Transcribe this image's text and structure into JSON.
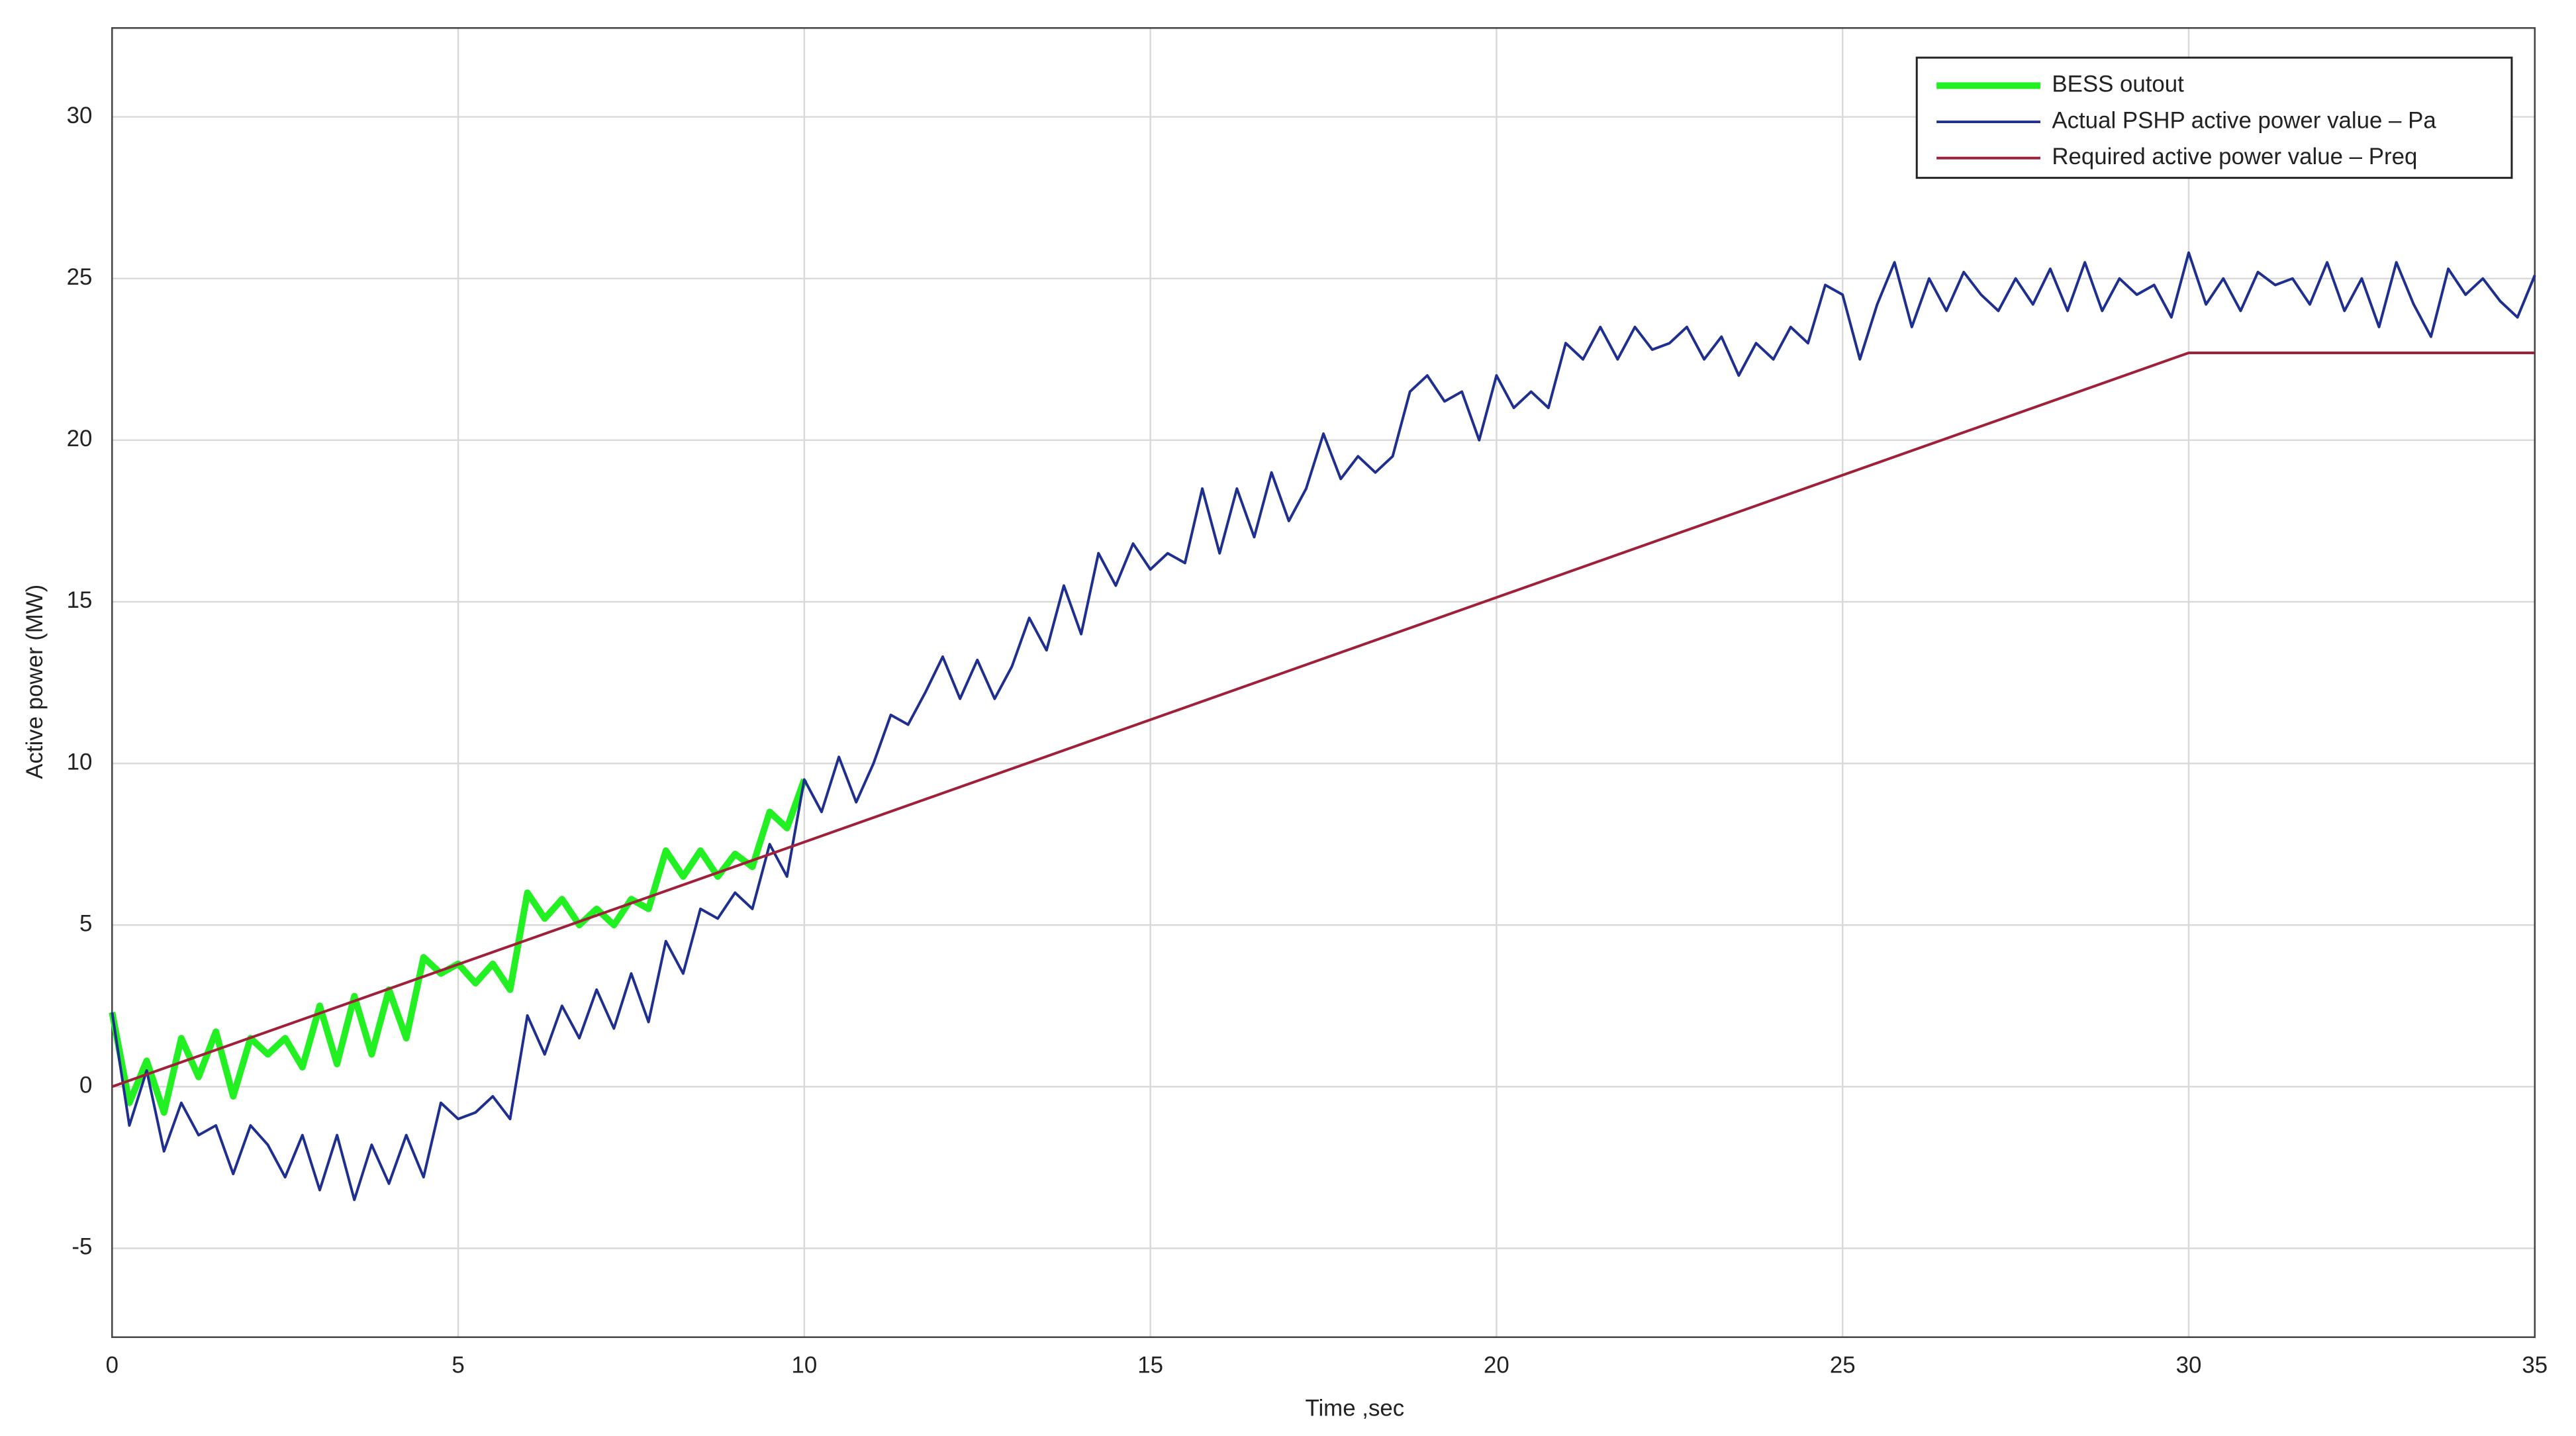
{
  "chart_data": {
    "type": "line",
    "xlabel": "Time ,sec",
    "ylabel": "Active power (MW)",
    "xlim": [
      0,
      35
    ],
    "ylim": [
      -7.75,
      32.75
    ],
    "xticks": [
      0,
      5,
      10,
      15,
      20,
      25,
      30,
      35
    ],
    "yticks": [
      -5,
      0,
      5,
      10,
      15,
      20,
      25,
      30
    ],
    "grid": true,
    "legend": "upper right",
    "series": [
      {
        "name": "BESS outout",
        "color": "#22f022",
        "width": 4,
        "x": [
          0,
          0.25,
          0.5,
          0.75,
          1,
          1.25,
          1.5,
          1.75,
          2,
          2.25,
          2.5,
          2.75,
          3,
          3.25,
          3.5,
          3.75,
          4,
          4.25,
          4.5,
          4.75,
          5,
          5.25,
          5.5,
          5.75,
          6,
          6.25,
          6.5,
          6.75,
          7,
          7.25,
          7.5,
          7.75,
          8,
          8.25,
          8.5,
          8.75,
          9,
          9.25,
          9.5,
          9.75,
          10
        ],
        "values": [
          2.3,
          -0.5,
          0.8,
          -0.8,
          1.5,
          0.3,
          1.7,
          -0.3,
          1.5,
          1.0,
          1.5,
          0.6,
          2.5,
          0.7,
          2.8,
          1.0,
          3.0,
          1.5,
          4.0,
          3.5,
          3.8,
          3.2,
          3.8,
          3.0,
          6.0,
          5.2,
          5.8,
          5.0,
          5.5,
          5.0,
          5.8,
          5.5,
          7.3,
          6.5,
          7.3,
          6.5,
          7.2,
          6.8,
          8.5,
          8.0,
          9.5
        ]
      },
      {
        "name": "Actual PSHP active power value – Pa",
        "color": "#1f2f8f",
        "width": 1.6,
        "x": [
          0,
          0.25,
          0.5,
          0.75,
          1,
          1.25,
          1.5,
          1.75,
          2,
          2.25,
          2.5,
          2.75,
          3,
          3.25,
          3.5,
          3.75,
          4,
          4.25,
          4.5,
          4.75,
          5,
          5.25,
          5.5,
          5.75,
          6,
          6.25,
          6.5,
          6.75,
          7,
          7.25,
          7.5,
          7.75,
          8,
          8.25,
          8.5,
          8.75,
          9,
          9.25,
          9.5,
          9.75,
          10,
          10.25,
          10.5,
          10.75,
          11,
          11.25,
          11.5,
          11.75,
          12,
          12.25,
          12.5,
          12.75,
          13,
          13.25,
          13.5,
          13.75,
          14,
          14.25,
          14.5,
          14.75,
          15,
          15.25,
          15.5,
          15.75,
          16,
          16.25,
          16.5,
          16.75,
          17,
          17.25,
          17.5,
          17.75,
          18,
          18.25,
          18.5,
          18.75,
          19,
          19.25,
          19.5,
          19.75,
          20,
          20.25,
          20.5,
          20.75,
          21,
          21.25,
          21.5,
          21.75,
          22,
          22.25,
          22.5,
          22.75,
          23,
          23.25,
          23.5,
          23.75,
          24,
          24.25,
          24.5,
          24.75,
          25,
          25.25,
          25.5,
          25.75,
          26,
          26.25,
          26.5,
          26.75,
          27,
          27.25,
          27.5,
          27.75,
          28,
          28.25,
          28.5,
          28.75,
          29,
          29.25,
          29.5,
          29.75,
          30,
          30.25,
          30.5,
          30.75,
          31,
          31.25,
          31.5,
          31.75,
          32,
          32.25,
          32.5,
          32.75,
          33,
          33.25,
          33.5,
          33.75,
          34,
          34.25,
          34.5,
          34.75,
          35
        ],
        "values": [
          2.3,
          -1.2,
          0.5,
          -2,
          -0.5,
          -1.5,
          -1.2,
          -2.7,
          -1.2,
          -1.8,
          -2.8,
          -1.5,
          -3.2,
          -1.5,
          -3.5,
          -1.8,
          -3.0,
          -1.5,
          -2.8,
          -0.5,
          -1.0,
          -0.8,
          -0.3,
          -1.0,
          2.2,
          1.0,
          2.5,
          1.5,
          3.0,
          1.8,
          3.5,
          2.0,
          4.5,
          3.5,
          5.5,
          5.2,
          6.0,
          5.5,
          7.5,
          6.5,
          9.5,
          8.5,
          10.2,
          8.8,
          10.0,
          11.5,
          11.2,
          12.2,
          13.3,
          12.0,
          13.2,
          12.0,
          13.0,
          14.5,
          13.5,
          15.5,
          14.0,
          16.5,
          15.5,
          16.8,
          16.0,
          16.5,
          16.2,
          18.5,
          16.5,
          18.5,
          17.0,
          19.0,
          17.5,
          18.5,
          20.2,
          18.8,
          19.5,
          19.0,
          19.5,
          21.5,
          22.0,
          21.2,
          21.5,
          20.0,
          22.0,
          21.0,
          21.5,
          21.0,
          23.0,
          22.5,
          23.5,
          22.5,
          23.5,
          22.8,
          23.0,
          23.5,
          22.5,
          23.2,
          22.0,
          23.0,
          22.5,
          23.5,
          23.0,
          24.8,
          24.5,
          22.5,
          24.2,
          25.5,
          23.5,
          25.0,
          24.0,
          25.2,
          24.5,
          24.0,
          25.0,
          24.2,
          25.3,
          24.0,
          25.5,
          24.0,
          25.0,
          24.5,
          24.8,
          23.8,
          25.8,
          24.2,
          25.0,
          24.0,
          25.2,
          24.8,
          25.0,
          24.2,
          25.5,
          24.0,
          25.0,
          23.5,
          25.5,
          24.2,
          23.2,
          25.3,
          24.5,
          25.0,
          24.3,
          23.8,
          25.1
        ]
      },
      {
        "name": "Required active power value – Preq",
        "color": "#a0203a",
        "width": 1.6,
        "x": [
          0,
          30,
          35
        ],
        "values": [
          0,
          22.7,
          22.7
        ]
      }
    ]
  }
}
